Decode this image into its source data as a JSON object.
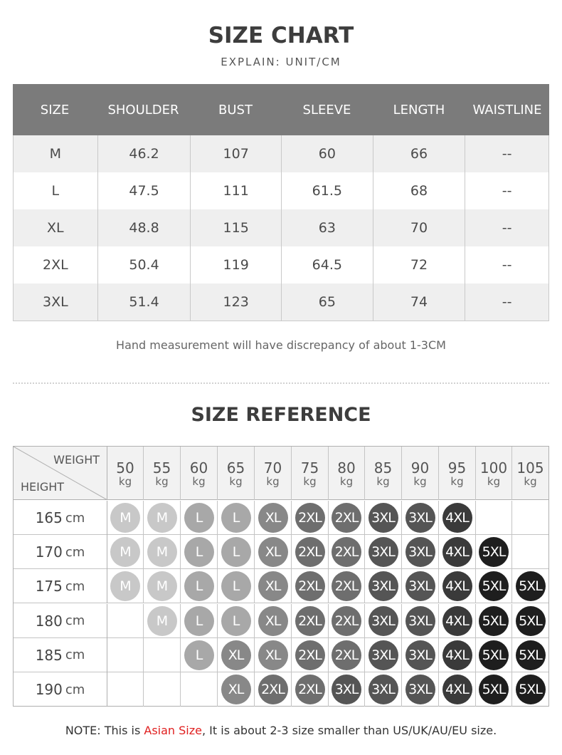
{
  "header": {
    "title": "SIZE CHART",
    "subtitle": "EXPLAIN: UNIT/CM"
  },
  "size_chart": {
    "columns": [
      "SIZE",
      "SHOULDER",
      "BUST",
      "SLEEVE",
      "LENGTH",
      "WAISTLINE"
    ],
    "rows": [
      [
        "M",
        "46.2",
        "107",
        "60",
        "66",
        "--"
      ],
      [
        "L",
        "47.5",
        "111",
        "61.5",
        "68",
        "--"
      ],
      [
        "XL",
        "48.8",
        "115",
        "63",
        "70",
        "--"
      ],
      [
        "2XL",
        "50.4",
        "119",
        "64.5",
        "72",
        "--"
      ],
      [
        "3XL",
        "51.4",
        "123",
        "65",
        "74",
        "--"
      ]
    ],
    "note": "Hand measurement will have discrepancy of about 1-3CM"
  },
  "size_reference": {
    "title": "SIZE REFERENCE",
    "weight_label": "WEIGHT",
    "height_label": "HEIGHT",
    "weight_unit": "kg",
    "height_unit": "cm",
    "weights": [
      "50",
      "55",
      "60",
      "65",
      "70",
      "75",
      "80",
      "85",
      "90",
      "95",
      "100",
      "105"
    ],
    "heights": [
      "165",
      "170",
      "175",
      "180",
      "185",
      "190"
    ],
    "grid": [
      [
        "M",
        "M",
        "L",
        "L",
        "XL",
        "2XL",
        "2XL",
        "3XL",
        "3XL",
        "4XL",
        "",
        ""
      ],
      [
        "M",
        "M",
        "L",
        "L",
        "XL",
        "2XL",
        "2XL",
        "3XL",
        "3XL",
        "4XL",
        "5XL",
        ""
      ],
      [
        "M",
        "M",
        "L",
        "L",
        "XL",
        "2XL",
        "2XL",
        "3XL",
        "3XL",
        "4XL",
        "5XL",
        "5XL"
      ],
      [
        "",
        "M",
        "L",
        "L",
        "XL",
        "2XL",
        "2XL",
        "3XL",
        "3XL",
        "4XL",
        "5XL",
        "5XL"
      ],
      [
        "",
        "",
        "L",
        "XL",
        "XL",
        "2XL",
        "2XL",
        "3XL",
        "3XL",
        "4XL",
        "5XL",
        "5XL"
      ],
      [
        "",
        "",
        "",
        "XL",
        "2XL",
        "2XL",
        "3XL",
        "3XL",
        "3XL",
        "4XL",
        "5XL",
        "5XL"
      ]
    ],
    "size_colors": {
      "M": "#c8c8c8",
      "L": "#a8a8a8",
      "XL": "#888888",
      "2XL": "#6e6e6e",
      "3XL": "#555555",
      "4XL": "#3a3a3a",
      "5XL": "#1e1e1e"
    }
  },
  "footer": {
    "note_prefix": "NOTE: This is ",
    "note_highlight": "Asian Size",
    "note_suffix": ", It is about 2-3 size smaller than US/UK/AU/EU size."
  }
}
